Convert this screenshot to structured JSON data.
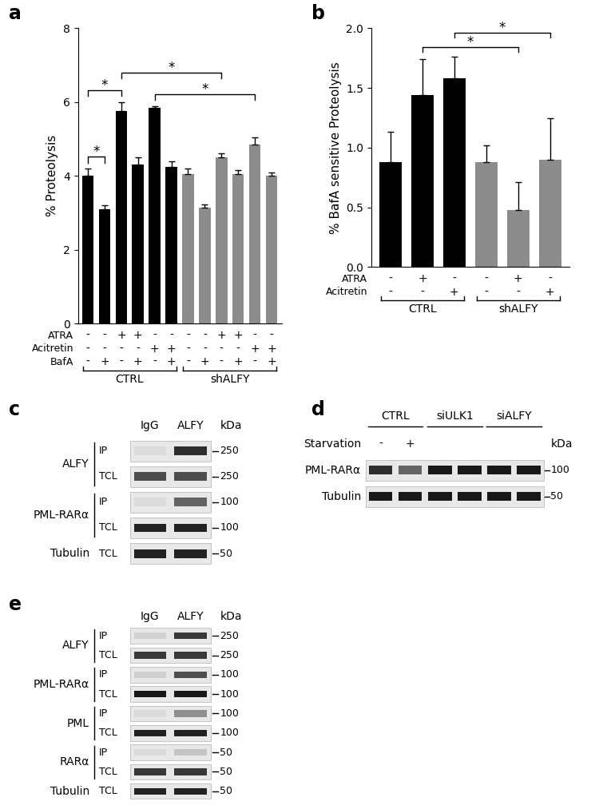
{
  "chart_data": [
    {
      "panel": "a",
      "type": "bar",
      "y_label": "% Proteolysis",
      "categories": [
        null,
        null,
        null,
        null,
        null,
        null,
        null,
        null,
        null,
        null,
        null,
        null
      ],
      "values": [
        4.0,
        3.1,
        5.75,
        4.3,
        5.85,
        4.25,
        4.05,
        3.15,
        4.5,
        4.05,
        4.85,
        4.0
      ],
      "errors": [
        0.2,
        0.1,
        0.25,
        0.2,
        0.05,
        0.15,
        0.15,
        0.07,
        0.12,
        0.1,
        0.2,
        0.1
      ],
      "colors": [
        "#000000",
        "#000000",
        "#000000",
        "#000000",
        "#000000",
        "#000000",
        "#8c8c8c",
        "#8c8c8c",
        "#8c8c8c",
        "#8c8c8c",
        "#8c8c8c",
        "#8c8c8c"
      ],
      "ylim": [
        0,
        8
      ],
      "yticks": [
        0,
        2,
        4,
        6,
        8
      ],
      "conditions": [
        {
          "name": "ATRA",
          "marks": [
            "-",
            "-",
            "+",
            "+",
            "-",
            "-",
            "-",
            "-",
            "+",
            "+",
            "-",
            "-"
          ]
        },
        {
          "name": "Acitretin",
          "marks": [
            "-",
            "-",
            "-",
            "-",
            "+",
            "+",
            "-",
            "-",
            "-",
            "-",
            "+",
            "+"
          ]
        },
        {
          "name": "BafA",
          "marks": [
            "-",
            "+",
            "-",
            "+",
            "-",
            "+",
            "-",
            "+",
            "-",
            "+",
            "-",
            "+"
          ]
        }
      ],
      "groups": [
        {
          "label": "CTRL",
          "start": 0,
          "end": 5
        },
        {
          "label": "shALFY",
          "start": 6,
          "end": 11
        }
      ],
      "significance": [
        {
          "pair": [
            0,
            1
          ],
          "label": "*"
        },
        {
          "pair": [
            0,
            2
          ],
          "label": "*"
        },
        {
          "pair": [
            4,
            10
          ],
          "label": "*"
        },
        {
          "pair": [
            2,
            8
          ],
          "label": "*"
        }
      ]
    },
    {
      "panel": "b",
      "type": "bar",
      "y_label": "% BafA sensitive Proteolysis",
      "categories": [
        null,
        null,
        null,
        null,
        null,
        null
      ],
      "values": [
        0.88,
        1.44,
        1.58,
        0.88,
        0.48,
        0.9
      ],
      "errors": [
        0.25,
        0.3,
        0.18,
        0.14,
        0.23,
        0.35
      ],
      "colors": [
        "#000000",
        "#000000",
        "#000000",
        "#8c8c8c",
        "#8c8c8c",
        "#8c8c8c"
      ],
      "ylim": [
        0,
        2.0
      ],
      "yticks": [
        {
          "value": 0,
          "label": "0.0"
        },
        {
          "value": 0.5,
          "label": "0.5"
        },
        {
          "value": 1.0,
          "label": "1.0"
        },
        {
          "value": 1.5,
          "label": "1.5"
        },
        {
          "value": 2.0,
          "label": "2.0"
        }
      ],
      "conditions": [
        {
          "name": "ATRA",
          "marks": [
            "-",
            "+",
            "-",
            "-",
            "+",
            "-"
          ]
        },
        {
          "name": "Acitretin",
          "marks": [
            "-",
            "-",
            "+",
            "-",
            "-",
            "+"
          ]
        }
      ],
      "groups": [
        {
          "label": "CTRL",
          "start": 0,
          "end": 2
        },
        {
          "label": "shALFY",
          "start": 3,
          "end": 5
        }
      ],
      "significance": [
        {
          "pair": [
            1,
            4
          ],
          "label": "*"
        },
        {
          "pair": [
            2,
            5
          ],
          "label": "*"
        }
      ]
    }
  ],
  "blots": [
    {
      "panel": "c",
      "marker_unit": "kDa",
      "lanes": [
        "IgG",
        "ALFY"
      ],
      "rows": [
        {
          "protein": "ALFY",
          "fraction": "IP",
          "marker": 250,
          "intensity": [
            0.05,
            0.85
          ]
        },
        {
          "protein": "ALFY",
          "fraction": "TCL",
          "marker": 250,
          "intensity": [
            0.7,
            0.7
          ]
        },
        {
          "protein": "PML-RARα",
          "fraction": "IP",
          "marker": 100,
          "intensity": [
            0.05,
            0.6
          ]
        },
        {
          "protein": "PML-RARα",
          "fraction": "TCL",
          "marker": 100,
          "intensity": [
            0.9,
            0.9
          ]
        },
        {
          "protein": "Tubulin",
          "fraction": "TCL",
          "marker": 50,
          "intensity": [
            0.9,
            0.9
          ]
        }
      ]
    },
    {
      "panel": "d",
      "marker_unit": "kDa",
      "lanes": [
        null,
        null,
        null,
        null,
        null,
        null
      ],
      "lane_groups": [
        {
          "label": "CTRL",
          "lanes": [
            0,
            1
          ]
        },
        {
          "label": "siULK1",
          "lanes": [
            2,
            3
          ]
        },
        {
          "label": "siALFY",
          "lanes": [
            4,
            5
          ]
        }
      ],
      "lane_marks": [
        {
          "name": "Starvation",
          "marks": [
            "-",
            "+",
            null,
            null,
            null,
            null
          ]
        }
      ],
      "rows": [
        {
          "protein": "PML-RARα",
          "marker": 100,
          "intensity": [
            0.85,
            0.6,
            0.95,
            0.95,
            0.95,
            0.95
          ]
        },
        {
          "protein": "Tubulin",
          "marker": 50,
          "intensity": [
            0.95,
            0.95,
            0.95,
            0.95,
            0.95,
            0.95
          ]
        }
      ]
    },
    {
      "panel": "e",
      "marker_unit": "kDa",
      "lanes": [
        "IgG",
        "ALFY"
      ],
      "rows": [
        {
          "protein": "ALFY",
          "fraction": "IP",
          "marker": 250,
          "intensity": [
            0.1,
            0.8
          ]
        },
        {
          "protein": "ALFY",
          "fraction": "TCL",
          "marker": 250,
          "intensity": [
            0.8,
            0.8
          ]
        },
        {
          "protein": "PML-RARα",
          "fraction": "IP",
          "marker": 100,
          "intensity": [
            0.1,
            0.7
          ]
        },
        {
          "protein": "PML-RARα",
          "fraction": "TCL",
          "marker": 100,
          "intensity": [
            0.95,
            0.95
          ]
        },
        {
          "protein": "PML",
          "fraction": "IP",
          "marker": 100,
          "intensity": [
            0.05,
            0.4
          ]
        },
        {
          "protein": "PML",
          "fraction": "TCL",
          "marker": 100,
          "intensity": [
            0.9,
            0.9
          ]
        },
        {
          "protein": "RARα",
          "fraction": "IP",
          "marker": 50,
          "intensity": [
            0.05,
            0.15
          ]
        },
        {
          "protein": "RARα",
          "fraction": "TCL",
          "marker": 50,
          "intensity": [
            0.8,
            0.8
          ]
        },
        {
          "protein": "Tubulin",
          "fraction": "TCL",
          "marker": 50,
          "intensity": [
            0.9,
            0.9
          ]
        }
      ]
    }
  ]
}
